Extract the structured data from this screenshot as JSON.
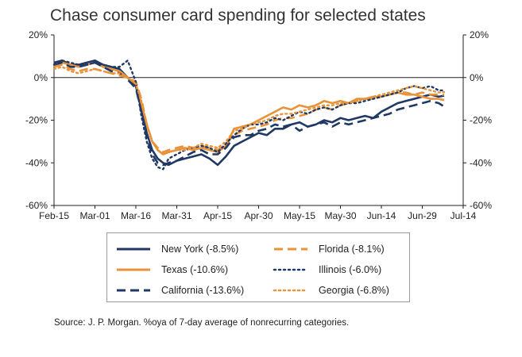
{
  "chart_data": {
    "type": "line",
    "title": "Chase consumer card spending for selected states",
    "source": "Source: J. P. Morgan. %oya of 7-day average of nonrecurring categories.",
    "ylim": [
      -60,
      20
    ],
    "y_ticks": [
      "20%",
      "0%",
      "-20%",
      "-40%",
      "-60%"
    ],
    "y_tick_values": [
      20,
      0,
      -20,
      -40,
      -60
    ],
    "x_tick_labels": [
      "Feb-15",
      "Mar-01",
      "Mar-16",
      "Mar-31",
      "Apr-15",
      "Apr-30",
      "May-15",
      "May-30",
      "Jun-14",
      "Jun-29",
      "Jul-14"
    ],
    "x_tick_days": [
      0,
      15,
      30,
      45,
      60,
      75,
      90,
      105,
      120,
      135,
      150
    ],
    "xlim": [
      0,
      150
    ],
    "grid": false,
    "reference_line": 0,
    "legend_position": "bottom",
    "colors": {
      "navy": "#1f3864",
      "orange": "#e8923a"
    },
    "series": [
      {
        "name": "New York (-8.5%)",
        "color": "#1f3864",
        "style": "solid",
        "points": [
          [
            0,
            7
          ],
          [
            3,
            8
          ],
          [
            6,
            6
          ],
          [
            9,
            6
          ],
          [
            12,
            7
          ],
          [
            15,
            8
          ],
          [
            18,
            6
          ],
          [
            21,
            5
          ],
          [
            24,
            4
          ],
          [
            27,
            0
          ],
          [
            30,
            -4
          ],
          [
            32,
            -15
          ],
          [
            34,
            -26
          ],
          [
            36,
            -34
          ],
          [
            38,
            -38
          ],
          [
            40,
            -40
          ],
          [
            42,
            -41
          ],
          [
            45,
            -39
          ],
          [
            48,
            -38
          ],
          [
            51,
            -37
          ],
          [
            54,
            -36
          ],
          [
            57,
            -38
          ],
          [
            60,
            -41
          ],
          [
            63,
            -37
          ],
          [
            66,
            -32
          ],
          [
            69,
            -30
          ],
          [
            72,
            -28
          ],
          [
            75,
            -26
          ],
          [
            78,
            -27
          ],
          [
            81,
            -24
          ],
          [
            84,
            -24
          ],
          [
            87,
            -22
          ],
          [
            90,
            -21
          ],
          [
            93,
            -23
          ],
          [
            96,
            -22
          ],
          [
            99,
            -20
          ],
          [
            102,
            -21
          ],
          [
            105,
            -19
          ],
          [
            108,
            -20
          ],
          [
            111,
            -19
          ],
          [
            114,
            -18
          ],
          [
            117,
            -19
          ],
          [
            120,
            -16
          ],
          [
            123,
            -14
          ],
          [
            126,
            -12
          ],
          [
            129,
            -11
          ],
          [
            132,
            -10
          ],
          [
            135,
            -9
          ],
          [
            138,
            -8
          ],
          [
            141,
            -9
          ],
          [
            143,
            -8.5
          ]
        ]
      },
      {
        "name": "Texas (-10.6%)",
        "color": "#e8923a",
        "style": "solid",
        "points": [
          [
            0,
            6
          ],
          [
            3,
            7
          ],
          [
            6,
            6
          ],
          [
            9,
            5
          ],
          [
            12,
            6
          ],
          [
            15,
            7
          ],
          [
            18,
            5
          ],
          [
            21,
            4
          ],
          [
            24,
            3
          ],
          [
            27,
            0
          ],
          [
            30,
            -3
          ],
          [
            32,
            -12
          ],
          [
            34,
            -22
          ],
          [
            36,
            -30
          ],
          [
            38,
            -34
          ],
          [
            40,
            -36
          ],
          [
            42,
            -35
          ],
          [
            45,
            -34
          ],
          [
            48,
            -33
          ],
          [
            51,
            -34
          ],
          [
            54,
            -33
          ],
          [
            57,
            -34
          ],
          [
            60,
            -35
          ],
          [
            63,
            -32
          ],
          [
            66,
            -24
          ],
          [
            69,
            -23
          ],
          [
            72,
            -22
          ],
          [
            75,
            -20
          ],
          [
            78,
            -18
          ],
          [
            81,
            -16
          ],
          [
            84,
            -14
          ],
          [
            87,
            -15
          ],
          [
            90,
            -13
          ],
          [
            93,
            -14
          ],
          [
            96,
            -13
          ],
          [
            99,
            -11
          ],
          [
            102,
            -12
          ],
          [
            105,
            -11
          ],
          [
            108,
            -12
          ],
          [
            111,
            -10
          ],
          [
            114,
            -10
          ],
          [
            117,
            -9
          ],
          [
            120,
            -9
          ],
          [
            123,
            -8
          ],
          [
            126,
            -7
          ],
          [
            129,
            -8
          ],
          [
            132,
            -8
          ],
          [
            135,
            -9
          ],
          [
            138,
            -10
          ],
          [
            141,
            -10
          ],
          [
            143,
            -10.6
          ]
        ]
      },
      {
        "name": "California (-13.6%)",
        "color": "#1f3864",
        "style": "dashed",
        "points": [
          [
            0,
            6
          ],
          [
            3,
            7
          ],
          [
            6,
            5
          ],
          [
            9,
            5
          ],
          [
            12,
            6
          ],
          [
            15,
            7
          ],
          [
            18,
            5
          ],
          [
            21,
            3
          ],
          [
            24,
            2
          ],
          [
            27,
            -1
          ],
          [
            30,
            -5
          ],
          [
            32,
            -16
          ],
          [
            34,
            -28
          ],
          [
            36,
            -36
          ],
          [
            38,
            -40
          ],
          [
            40,
            -41
          ],
          [
            42,
            -40
          ],
          [
            45,
            -39
          ],
          [
            48,
            -37
          ],
          [
            51,
            -35
          ],
          [
            54,
            -34
          ],
          [
            57,
            -36
          ],
          [
            60,
            -36
          ],
          [
            63,
            -33
          ],
          [
            66,
            -28
          ],
          [
            69,
            -27
          ],
          [
            72,
            -27
          ],
          [
            75,
            -25
          ],
          [
            78,
            -24
          ],
          [
            81,
            -22
          ],
          [
            84,
            -23
          ],
          [
            87,
            -22
          ],
          [
            90,
            -25
          ],
          [
            93,
            -23
          ],
          [
            96,
            -22
          ],
          [
            99,
            -21
          ],
          [
            102,
            -23
          ],
          [
            105,
            -21
          ],
          [
            108,
            -22
          ],
          [
            111,
            -21
          ],
          [
            114,
            -20
          ],
          [
            117,
            -19
          ],
          [
            120,
            -18
          ],
          [
            123,
            -17
          ],
          [
            126,
            -15
          ],
          [
            129,
            -14
          ],
          [
            132,
            -13
          ],
          [
            135,
            -12
          ],
          [
            138,
            -11
          ],
          [
            141,
            -12
          ],
          [
            143,
            -13.6
          ]
        ]
      },
      {
        "name": "Florida (-8.1%)",
        "color": "#e8923a",
        "style": "dashed",
        "points": [
          [
            0,
            5
          ],
          [
            3,
            6
          ],
          [
            6,
            4
          ],
          [
            9,
            3
          ],
          [
            12,
            4
          ],
          [
            15,
            4
          ],
          [
            18,
            3
          ],
          [
            21,
            2
          ],
          [
            24,
            1
          ],
          [
            27,
            0
          ],
          [
            30,
            -2
          ],
          [
            32,
            -10
          ],
          [
            34,
            -22
          ],
          [
            36,
            -30
          ],
          [
            38,
            -33
          ],
          [
            40,
            -35
          ],
          [
            42,
            -34
          ],
          [
            45,
            -33
          ],
          [
            48,
            -32
          ],
          [
            51,
            -33
          ],
          [
            54,
            -32
          ],
          [
            57,
            -33
          ],
          [
            60,
            -34
          ],
          [
            63,
            -31
          ],
          [
            66,
            -27
          ],
          [
            69,
            -25
          ],
          [
            72,
            -24
          ],
          [
            75,
            -23
          ],
          [
            78,
            -22
          ],
          [
            81,
            -20
          ],
          [
            84,
            -19
          ],
          [
            87,
            -19
          ],
          [
            90,
            -18
          ],
          [
            93,
            -17
          ],
          [
            96,
            -15
          ],
          [
            99,
            -14
          ],
          [
            102,
            -15
          ],
          [
            105,
            -13
          ],
          [
            108,
            -12
          ],
          [
            111,
            -11
          ],
          [
            114,
            -10
          ],
          [
            117,
            -10
          ],
          [
            120,
            -9
          ],
          [
            123,
            -8
          ],
          [
            126,
            -7
          ],
          [
            129,
            -7
          ],
          [
            132,
            -8
          ],
          [
            135,
            -7
          ],
          [
            138,
            -8
          ],
          [
            141,
            -8
          ],
          [
            143,
            -8.1
          ]
        ]
      },
      {
        "name": "Illinois (-6.0%)",
        "color": "#1f3864",
        "style": "dotted",
        "points": [
          [
            0,
            6
          ],
          [
            3,
            8
          ],
          [
            6,
            7
          ],
          [
            9,
            6
          ],
          [
            12,
            6
          ],
          [
            15,
            7
          ],
          [
            18,
            6
          ],
          [
            21,
            5
          ],
          [
            24,
            5
          ],
          [
            27,
            8
          ],
          [
            30,
            -2
          ],
          [
            32,
            -18
          ],
          [
            34,
            -30
          ],
          [
            36,
            -38
          ],
          [
            38,
            -42
          ],
          [
            40,
            -43
          ],
          [
            42,
            -38
          ],
          [
            45,
            -36
          ],
          [
            48,
            -34
          ],
          [
            51,
            -33
          ],
          [
            54,
            -32
          ],
          [
            57,
            -33
          ],
          [
            60,
            -35
          ],
          [
            63,
            -31
          ],
          [
            66,
            -27
          ],
          [
            69,
            -24
          ],
          [
            72,
            -22
          ],
          [
            75,
            -22
          ],
          [
            78,
            -21
          ],
          [
            81,
            -19
          ],
          [
            84,
            -20
          ],
          [
            87,
            -18
          ],
          [
            90,
            -16
          ],
          [
            93,
            -17
          ],
          [
            96,
            -15
          ],
          [
            99,
            -14
          ],
          [
            102,
            -15
          ],
          [
            105,
            -13
          ],
          [
            108,
            -12
          ],
          [
            111,
            -12
          ],
          [
            114,
            -11
          ],
          [
            117,
            -10
          ],
          [
            120,
            -9
          ],
          [
            123,
            -8
          ],
          [
            126,
            -7
          ],
          [
            129,
            -5
          ],
          [
            132,
            -4
          ],
          [
            135,
            -5
          ],
          [
            138,
            -4
          ],
          [
            141,
            -6
          ],
          [
            143,
            -6
          ]
        ]
      },
      {
        "name": "Georgia (-6.8%)",
        "color": "#e8923a",
        "style": "dotted",
        "points": [
          [
            0,
            4
          ],
          [
            3,
            5
          ],
          [
            6,
            3
          ],
          [
            9,
            2
          ],
          [
            12,
            3
          ],
          [
            15,
            4
          ],
          [
            18,
            3
          ],
          [
            21,
            2
          ],
          [
            24,
            2
          ],
          [
            27,
            0
          ],
          [
            30,
            -3
          ],
          [
            32,
            -11
          ],
          [
            34,
            -22
          ],
          [
            36,
            -30
          ],
          [
            38,
            -34
          ],
          [
            40,
            -36
          ],
          [
            42,
            -35
          ],
          [
            45,
            -34
          ],
          [
            48,
            -34
          ],
          [
            51,
            -33
          ],
          [
            54,
            -31
          ],
          [
            57,
            -32
          ],
          [
            60,
            -33
          ],
          [
            63,
            -30
          ],
          [
            66,
            -25
          ],
          [
            69,
            -24
          ],
          [
            72,
            -22
          ],
          [
            75,
            -21
          ],
          [
            78,
            -20
          ],
          [
            81,
            -18
          ],
          [
            84,
            -17
          ],
          [
            87,
            -17
          ],
          [
            90,
            -16
          ],
          [
            93,
            -15
          ],
          [
            96,
            -14
          ],
          [
            99,
            -13
          ],
          [
            102,
            -13
          ],
          [
            105,
            -12
          ],
          [
            108,
            -12
          ],
          [
            111,
            -11
          ],
          [
            114,
            -10
          ],
          [
            117,
            -9
          ],
          [
            120,
            -8
          ],
          [
            123,
            -7
          ],
          [
            126,
            -6
          ],
          [
            129,
            -5
          ],
          [
            132,
            -4
          ],
          [
            135,
            -5
          ],
          [
            138,
            -6
          ],
          [
            141,
            -7
          ],
          [
            143,
            -6.8
          ]
        ]
      }
    ]
  }
}
